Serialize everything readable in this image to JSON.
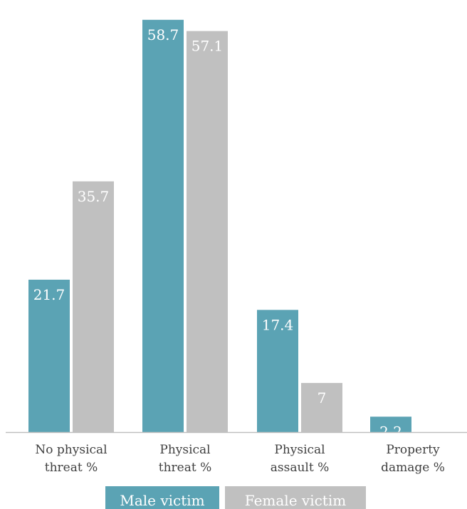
{
  "chart_data": {
    "type": "bar",
    "categories": [
      [
        "No physical",
        "threat %"
      ],
      [
        "Physical",
        "threat %"
      ],
      [
        "Physical",
        "assault %"
      ],
      [
        "Property",
        "damage %"
      ]
    ],
    "series": [
      {
        "name": "Male victim",
        "color": "#5ba3b4",
        "values": [
          21.7,
          58.7,
          17.4,
          2.2
        ],
        "labels": [
          "21.7",
          "58.7",
          "17.4",
          "2.2"
        ]
      },
      {
        "name": "Female victim",
        "color": "#c0c0c0",
        "values": [
          35.7,
          57.1,
          7,
          null
        ],
        "labels": [
          "35.7",
          "57.1",
          "7",
          null
        ]
      }
    ],
    "ylim": [
      0,
      60
    ],
    "grid": false,
    "legend": "bottom",
    "axis_color": "#bfbfbf",
    "title": "",
    "xlabel": "",
    "ylabel": ""
  }
}
